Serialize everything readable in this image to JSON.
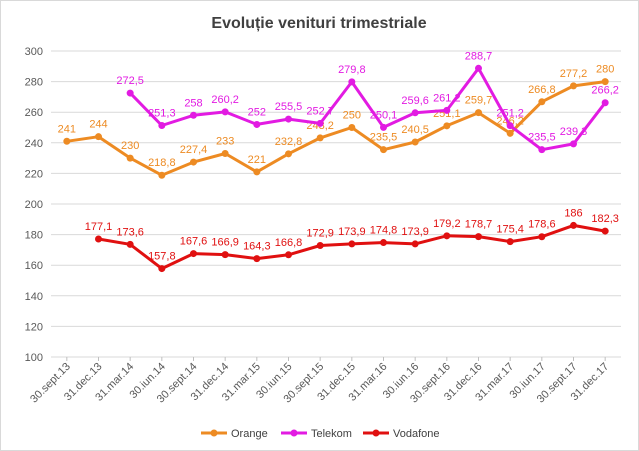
{
  "chart_data": {
    "type": "line",
    "title": "Evoluție venituri trimestriale",
    "xlabel": "",
    "ylabel": "",
    "ylim": [
      100,
      300
    ],
    "yticks": [
      100,
      120,
      140,
      160,
      180,
      200,
      220,
      240,
      260,
      280,
      300
    ],
    "grid": true,
    "legend_position": "bottom",
    "categories": [
      "30.sept.13",
      "31.dec.13",
      "31.mar.14",
      "30.iun.14",
      "30.sept.14",
      "31.dec.14",
      "31.mar.15",
      "30.iun.15",
      "30.sept.15",
      "31.dec.15",
      "31.mar.16",
      "30.iun.16",
      "30.sept.16",
      "31.dec.16",
      "31.mar.17",
      "30.iun.17",
      "30.sept.17",
      "31.dec.17"
    ],
    "series": [
      {
        "name": "Orange",
        "color": "#ed8b23",
        "values": [
          241,
          244,
          230,
          218.8,
          227.4,
          233,
          221,
          232.8,
          243.2,
          250,
          235.5,
          240.5,
          251.1,
          259.7,
          246.2,
          266.8,
          277.2,
          280
        ],
        "labels": [
          "241",
          "244",
          "230",
          "218,8",
          "227,4",
          "233",
          "221",
          "232,8",
          "243,2",
          "250",
          "235,5",
          "240,5",
          "251,1",
          "259,7",
          "246,2",
          "266,8",
          "277,2",
          "280"
        ]
      },
      {
        "name": "Telekom",
        "color": "#e21be2",
        "values": [
          null,
          null,
          272.5,
          251.3,
          258,
          260.2,
          252,
          255.5,
          252.7,
          279.8,
          250.1,
          259.6,
          261.2,
          288.7,
          251.2,
          235.5,
          239.3,
          266.2
        ],
        "labels": [
          null,
          null,
          "272,5",
          "251,3",
          "258",
          "260,2",
          "252",
          "255,5",
          "252,7",
          "279,8",
          "250,1",
          "259,6",
          "261,2",
          "288,7",
          "251,2",
          "235,5",
          "239,3",
          "266,2"
        ]
      },
      {
        "name": "Vodafone",
        "color": "#e01010",
        "values": [
          null,
          177.1,
          173.6,
          157.8,
          167.6,
          166.9,
          164.3,
          166.8,
          172.9,
          173.9,
          174.8,
          173.9,
          179.2,
          178.7,
          175.4,
          178.6,
          186,
          182.3
        ],
        "labels": [
          null,
          "177,1",
          "173,6",
          "157,8",
          "167,6",
          "166,9",
          "164,3",
          "166,8",
          "172,9",
          "173,9",
          "174,8",
          "173,9",
          "179,2",
          "178,7",
          "175,4",
          "178,6",
          "186",
          "182,3"
        ]
      }
    ]
  }
}
